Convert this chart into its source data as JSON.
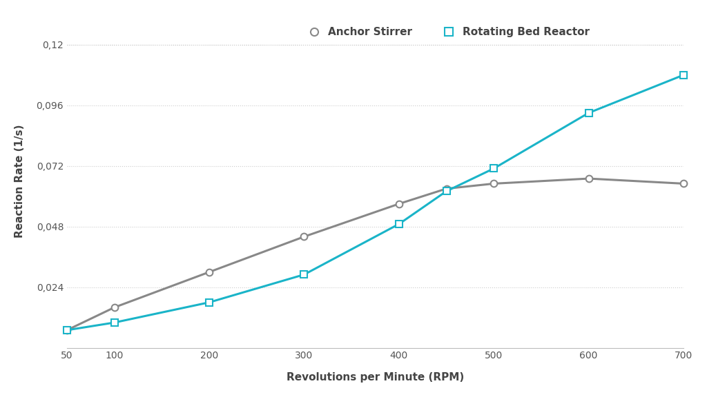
{
  "anchor_x": [
    50,
    100,
    200,
    300,
    400,
    450,
    500,
    600,
    700
  ],
  "anchor_y": [
    0.007,
    0.016,
    0.03,
    0.044,
    0.057,
    0.063,
    0.065,
    0.067,
    0.065
  ],
  "rbr_x": [
    50,
    100,
    200,
    300,
    400,
    450,
    500,
    600,
    700
  ],
  "rbr_y": [
    0.007,
    0.01,
    0.018,
    0.029,
    0.049,
    0.062,
    0.071,
    0.093,
    0.108
  ],
  "anchor_color": "#888888",
  "rbr_color": "#1ab4c8",
  "anchor_label": "Anchor Stirrer",
  "rbr_label": "Rotating Bed Reactor",
  "xlabel": "Revolutions per Minute (RPM)",
  "ylabel": "Reaction Rate (1/s)",
  "xlim": [
    50,
    700
  ],
  "ylim": [
    0,
    0.132
  ],
  "yticks": [
    0.024,
    0.048,
    0.072,
    0.096,
    0.12
  ],
  "ytick_labels": [
    "0,024",
    "0,048",
    "0,072",
    "0,096",
    "0,12"
  ],
  "xticks": [
    50,
    100,
    200,
    300,
    400,
    500,
    600,
    700
  ],
  "background_color": "#ffffff",
  "grid_color": "#cccccc",
  "label_fontsize": 11,
  "tick_fontsize": 10,
  "line_width": 2.2,
  "marker_size": 7
}
